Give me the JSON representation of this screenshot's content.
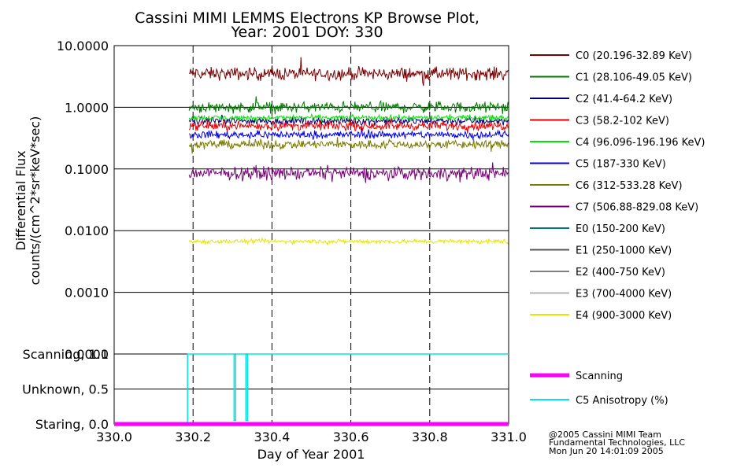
{
  "chart_data": [
    {
      "type": "line",
      "title": "Cassini MIMI LEMMS Electrons KP Browse Plot,",
      "subtitle": "Year: 2001 DOY: 330",
      "ylabel": "Differential Flux",
      "ylabel2": "counts/(cm^2*sr*keV*sec)",
      "yscale": "log",
      "ylim": [
        0.0001,
        10
      ],
      "xlim": [
        330.0,
        331.0
      ],
      "ytick_values": [
        10,
        1,
        0.1,
        0.01,
        0.001,
        0.0001
      ],
      "ytick_labels": [
        "10.0000",
        "1.0000",
        "0.1000",
        "0.0100",
        "0.0010",
        "0.0001"
      ],
      "xgrid_values": [
        330.2,
        330.4,
        330.6,
        330.8
      ],
      "data_start": 330.19,
      "legend_placement": "right",
      "series": [
        {
          "name": "C0 (20.196-32.89 KeV)",
          "color": "#7a0000",
          "level": 3.5,
          "jitter": 0.13,
          "shown": true
        },
        {
          "name": "C1 (28.106-49.05 KeV)",
          "color": "#007a00",
          "level": 1.0,
          "jitter": 0.11,
          "shown": true
        },
        {
          "name": "C2 (41.4-64.2 KeV)",
          "color": "#00007a",
          "level": 0.6,
          "jitter": 0.08,
          "shown": true
        },
        {
          "name": "C3 (58.2-102 KeV)",
          "color": "#e60000",
          "level": 0.5,
          "jitter": 0.09,
          "shown": true
        },
        {
          "name": "C4 (96.096-196.196 KeV)",
          "color": "#00e600",
          "level": 0.68,
          "jitter": 0.05,
          "shown": true
        },
        {
          "name": "C5 (187-330 KeV)",
          "color": "#0000e6",
          "level": 0.36,
          "jitter": 0.08,
          "shown": true
        },
        {
          "name": "C6 (312-533.28 KeV)",
          "color": "#7a7a00",
          "level": 0.25,
          "jitter": 0.09,
          "shown": true
        },
        {
          "name": "C7 (506.88-829.08 KeV)",
          "color": "#7a007a",
          "level": 0.085,
          "jitter": 0.13,
          "shown": true
        },
        {
          "name": "E0 (150-200 KeV)",
          "color": "#007a7a",
          "level": null,
          "jitter": 0,
          "shown": false
        },
        {
          "name": "E1 (250-1000 KeV)",
          "color": "#555555",
          "level": null,
          "jitter": 0,
          "shown": false
        },
        {
          "name": "E2 (400-750 KeV)",
          "color": "#808080",
          "level": null,
          "jitter": 0,
          "shown": false
        },
        {
          "name": "E3 (700-4000 KeV)",
          "color": "#b4b4b4",
          "level": null,
          "jitter": 0,
          "shown": false
        },
        {
          "name": "E4 (900-3000 KeV)",
          "color": "#e6e600",
          "level": 0.0067,
          "jitter": 0.045,
          "shown": true
        }
      ]
    },
    {
      "type": "line",
      "xlabel": "Day of Year 2001",
      "xlim": [
        330.0,
        331.0
      ],
      "ylim": [
        0.0,
        1.0
      ],
      "ytick_values": [
        1.0,
        0.5,
        0.0
      ],
      "ytick_labels": [
        "Scanning, 1.0",
        "Unknown, 0.5",
        "Staring, 0.0"
      ],
      "xtick_values": [
        330.0,
        330.2,
        330.4,
        330.6,
        330.8,
        331.0
      ],
      "xtick_labels": [
        "330.0",
        "330.2",
        "330.4",
        "330.6",
        "330.8",
        "331.0"
      ],
      "xgrid_values": [
        330.2,
        330.4,
        330.6,
        330.8
      ],
      "series": [
        {
          "name": "Scanning",
          "color": "#ff00ff",
          "x": [
            330.0,
            331.0
          ],
          "y": [
            0.0,
            0.0
          ]
        },
        {
          "name": "C5 Anisotropy (%)",
          "color": "#00e6e6",
          "x": [
            330.182,
            330.182,
            330.186,
            330.186,
            330.304,
            330.304,
            330.308,
            330.308,
            330.334,
            330.334,
            330.338,
            330.338,
            331.0
          ],
          "y": [
            0.0,
            0.0,
            0.0,
            1.0,
            1.0,
            0.05,
            0.05,
            1.0,
            1.0,
            0.05,
            0.05,
            1.0,
            1.0
          ]
        }
      ]
    }
  ],
  "footer": {
    "line1": "@2005 Cassini MIMI Team",
    "line2": "Fundamental Technologies, LLC",
    "line3": "Mon Jun 20 14:01:09 2005"
  }
}
